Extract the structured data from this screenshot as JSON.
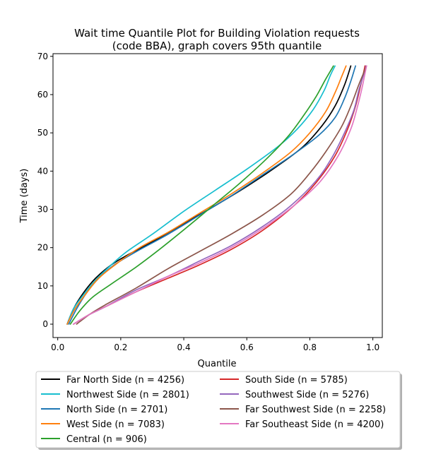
{
  "chart_data": {
    "type": "line",
    "title": [
      "Wait time Quantile Plot for Building Violation  requests",
      "(code BBA), graph covers 95th quantile"
    ],
    "xlabel": "Quantile",
    "ylabel": "Time (days)",
    "xlim": [
      -0.015,
      1.03
    ],
    "ylim": [
      -3.5,
      70.7
    ],
    "xticks": [
      "0.0",
      "0.2",
      "0.4",
      "0.6",
      "0.8",
      "1.0"
    ],
    "yticks": [
      "0",
      "10",
      "20",
      "30",
      "40",
      "50",
      "60",
      "70"
    ],
    "grid": false,
    "legend_position": "below",
    "series": [
      {
        "name": "Far North Side (n = 4256)",
        "color": "#000000",
        "points": [
          [
            0.03,
            0
          ],
          [
            0.05,
            4
          ],
          [
            0.08,
            8
          ],
          [
            0.12,
            12
          ],
          [
            0.17,
            15.5
          ],
          [
            0.22,
            18
          ],
          [
            0.3,
            21.5
          ],
          [
            0.4,
            26.3
          ],
          [
            0.5,
            31
          ],
          [
            0.6,
            36
          ],
          [
            0.7,
            41.5
          ],
          [
            0.78,
            46.5
          ],
          [
            0.84,
            52
          ],
          [
            0.88,
            57
          ],
          [
            0.91,
            62.5
          ],
          [
            0.93,
            67.5
          ]
        ]
      },
      {
        "name": "Northwest Side (n = 2801)",
        "color": "#17becf",
        "points": [
          [
            0.03,
            0
          ],
          [
            0.05,
            4
          ],
          [
            0.08,
            7.5
          ],
          [
            0.12,
            11.5
          ],
          [
            0.17,
            15.5
          ],
          [
            0.22,
            19
          ],
          [
            0.3,
            23.5
          ],
          [
            0.4,
            29.5
          ],
          [
            0.5,
            35
          ],
          [
            0.6,
            40.5
          ],
          [
            0.7,
            46.5
          ],
          [
            0.76,
            51
          ],
          [
            0.81,
            56
          ],
          [
            0.845,
            61
          ],
          [
            0.865,
            65
          ],
          [
            0.88,
            67.5
          ]
        ]
      },
      {
        "name": "North Side (n = 2701)",
        "color": "#1f77b4",
        "points": [
          [
            0.035,
            0
          ],
          [
            0.06,
            4
          ],
          [
            0.09,
            8
          ],
          [
            0.13,
            12
          ],
          [
            0.18,
            15.5
          ],
          [
            0.25,
            19
          ],
          [
            0.35,
            23.5
          ],
          [
            0.45,
            28.5
          ],
          [
            0.55,
            33.5
          ],
          [
            0.65,
            39
          ],
          [
            0.75,
            44.5
          ],
          [
            0.83,
            49.5
          ],
          [
            0.88,
            54
          ],
          [
            0.91,
            59
          ],
          [
            0.93,
            63.5
          ],
          [
            0.945,
            67.5
          ]
        ]
      },
      {
        "name": "West Side (n = 7083)",
        "color": "#ff7f0e",
        "points": [
          [
            0.03,
            0
          ],
          [
            0.055,
            4
          ],
          [
            0.09,
            8
          ],
          [
            0.13,
            12
          ],
          [
            0.19,
            16
          ],
          [
            0.26,
            20
          ],
          [
            0.35,
            24
          ],
          [
            0.45,
            29
          ],
          [
            0.55,
            34
          ],
          [
            0.65,
            39.5
          ],
          [
            0.74,
            45
          ],
          [
            0.8,
            50
          ],
          [
            0.85,
            55.5
          ],
          [
            0.88,
            60.5
          ],
          [
            0.9,
            64.5
          ],
          [
            0.915,
            67.5
          ]
        ]
      },
      {
        "name": "Central (n = 906)",
        "color": "#2ca02c",
        "points": [
          [
            0.04,
            0
          ],
          [
            0.07,
            3.5
          ],
          [
            0.11,
            7
          ],
          [
            0.17,
            10.5
          ],
          [
            0.25,
            15
          ],
          [
            0.33,
            20
          ],
          [
            0.42,
            26
          ],
          [
            0.5,
            31.5
          ],
          [
            0.58,
            37
          ],
          [
            0.66,
            43
          ],
          [
            0.73,
            49
          ],
          [
            0.78,
            54.5
          ],
          [
            0.82,
            59.5
          ],
          [
            0.85,
            64
          ],
          [
            0.875,
            67.5
          ]
        ]
      },
      {
        "name": "South Side (n = 5785)",
        "color": "#d62728",
        "points": [
          [
            0.05,
            0
          ],
          [
            0.1,
            2.5
          ],
          [
            0.15,
            4.5
          ],
          [
            0.25,
            8.5
          ],
          [
            0.35,
            12
          ],
          [
            0.45,
            15.5
          ],
          [
            0.55,
            19.5
          ],
          [
            0.65,
            24.5
          ],
          [
            0.75,
            31
          ],
          [
            0.82,
            37
          ],
          [
            0.88,
            44
          ],
          [
            0.92,
            51
          ],
          [
            0.945,
            57
          ],
          [
            0.96,
            62
          ],
          [
            0.97,
            65.5
          ],
          [
            0.975,
            67.5
          ]
        ]
      },
      {
        "name": "Southwest Side (n = 5276)",
        "color": "#9467bd",
        "points": [
          [
            0.05,
            0
          ],
          [
            0.1,
            2.5
          ],
          [
            0.15,
            4.5
          ],
          [
            0.25,
            9
          ],
          [
            0.35,
            12.5
          ],
          [
            0.45,
            16.5
          ],
          [
            0.55,
            20.5
          ],
          [
            0.65,
            25.5
          ],
          [
            0.74,
            31
          ],
          [
            0.82,
            37.5
          ],
          [
            0.87,
            43.5
          ],
          [
            0.91,
            50
          ],
          [
            0.94,
            56
          ],
          [
            0.955,
            61
          ],
          [
            0.97,
            65
          ],
          [
            0.978,
            67.5
          ]
        ]
      },
      {
        "name": "Far Southwest Side (n = 2258)",
        "color": "#8c564b",
        "points": [
          [
            0.06,
            0
          ],
          [
            0.1,
            2.5
          ],
          [
            0.15,
            5
          ],
          [
            0.25,
            9.5
          ],
          [
            0.35,
            14.5
          ],
          [
            0.45,
            19
          ],
          [
            0.55,
            23.5
          ],
          [
            0.65,
            28.5
          ],
          [
            0.74,
            34
          ],
          [
            0.8,
            39.5
          ],
          [
            0.85,
            45
          ],
          [
            0.9,
            51.5
          ],
          [
            0.93,
            57
          ],
          [
            0.955,
            62.5
          ],
          [
            0.97,
            65.5
          ],
          [
            0.98,
            67.5
          ]
        ]
      },
      {
        "name": "Far Southeast Side (n = 4200)",
        "color": "#e377c2",
        "points": [
          [
            0.05,
            0
          ],
          [
            0.1,
            2.5
          ],
          [
            0.15,
            4.5
          ],
          [
            0.25,
            8.5
          ],
          [
            0.35,
            12.5
          ],
          [
            0.45,
            16
          ],
          [
            0.55,
            20
          ],
          [
            0.65,
            25
          ],
          [
            0.75,
            31
          ],
          [
            0.83,
            37
          ],
          [
            0.89,
            44
          ],
          [
            0.93,
            51
          ],
          [
            0.95,
            56.5
          ],
          [
            0.965,
            61.5
          ],
          [
            0.975,
            65.5
          ],
          [
            0.98,
            67.5
          ]
        ]
      }
    ]
  }
}
